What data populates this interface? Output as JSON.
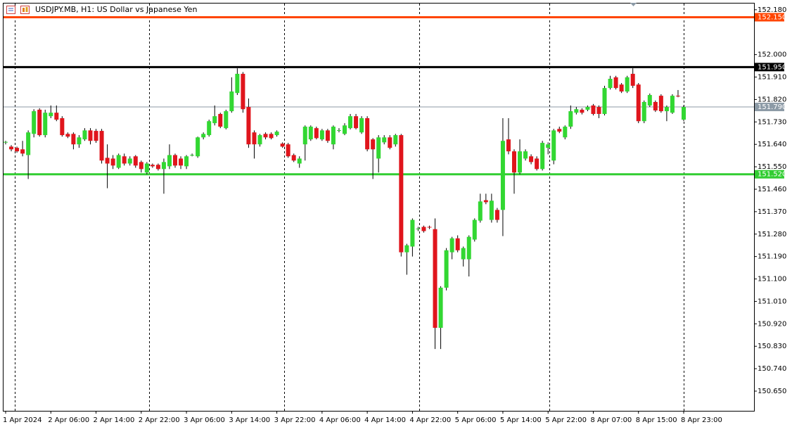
{
  "chart_data": {
    "type": "candlestick",
    "title": "USDJPY.MB, H1: US Dollar vs Japanese Yen",
    "categories": [
      "1 Apr 2024",
      null,
      null,
      null,
      null,
      null,
      null,
      null,
      "2 Apr 06:00",
      null,
      null,
      null,
      null,
      null,
      null,
      null,
      "2 Apr 14:00",
      null,
      null,
      null,
      null,
      null,
      null,
      null,
      "2 Apr 22:00",
      null,
      null,
      null,
      null,
      null,
      null,
      null,
      "3 Apr 06:00",
      null,
      null,
      null,
      null,
      null,
      null,
      null,
      "3 Apr 14:00",
      null,
      null,
      null,
      null,
      null,
      null,
      null,
      "3 Apr 22:00",
      null,
      null,
      null,
      null,
      null,
      null,
      null,
      "4 Apr 06:00",
      null,
      null,
      null,
      null,
      null,
      null,
      null,
      "4 Apr 14:00",
      null,
      null,
      null,
      null,
      null,
      null,
      null,
      "4 Apr 22:00",
      null,
      null,
      null,
      null,
      null,
      null,
      null,
      "5 Apr 06:00",
      null,
      null,
      null,
      null,
      null,
      null,
      null,
      "5 Apr 14:00",
      null,
      null,
      null,
      null,
      null,
      null,
      null,
      "5 Apr 22:00",
      null,
      null,
      null,
      null,
      null,
      null,
      null,
      "8 Apr 07:00",
      null,
      null,
      null,
      null,
      null,
      null,
      null,
      "8 Apr 15:00",
      null,
      null,
      null,
      null,
      null,
      null,
      null,
      "8 Apr 23:00"
    ],
    "open": [
      151.648,
      151.631,
      151.626,
      151.62,
      151.597,
      151.682,
      151.779,
      151.677,
      151.753,
      151.767,
      151.745,
      151.682,
      151.682,
      151.64,
      151.66,
      151.696,
      151.694,
      151.694,
      151.586,
      151.583,
      151.546,
      151.592,
      151.563,
      151.592,
      151.569,
      151.527,
      151.558,
      151.558,
      151.541,
      151.552,
      151.597,
      151.583,
      151.552,
      151.597,
      151.592,
      151.668,
      151.677,
      151.725,
      151.762,
      151.705,
      151.773,
      151.846,
      151.923,
      151.79,
      151.688,
      151.64,
      151.682,
      151.682,
      151.677,
      151.643,
      151.64,
      151.597,
      151.563,
      151.64,
      151.66,
      151.705,
      151.66,
      151.696,
      151.64,
      151.696,
      151.682,
      151.705,
      151.753,
      151.688,
      151.745,
      151.66,
      151.583,
      151.648,
      151.668,
      151.64,
      151.677,
      151.207,
      151.23,
      151.3,
      151.309,
      151.309,
      151.3,
      150.904,
      151.065,
      151.207,
      151.263,
      151.179,
      151.179,
      151.258,
      151.334,
      151.416,
      151.337,
      151.377,
      151.377,
      151.66,
      151.612,
      151.527,
      151.583,
      151.592,
      151.583,
      151.541,
      151.626,
      151.575,
      151.702,
      151.668,
      151.711,
      151.767,
      151.779,
      151.779,
      151.796,
      151.79,
      151.762,
      151.866,
      151.909,
      151.88,
      151.852,
      151.923,
      151.88,
      151.733,
      151.796,
      151.81,
      151.835,
      151.773,
      151.767,
      151.835,
      151.739
    ],
    "high": [
      151.654,
      151.637,
      151.631,
      151.654,
      151.696,
      151.781,
      151.785,
      151.779,
      151.796,
      151.796,
      151.753,
      151.688,
      151.688,
      151.677,
      151.705,
      151.705,
      151.702,
      151.702,
      151.64,
      151.597,
      151.603,
      151.603,
      151.592,
      151.597,
      151.575,
      151.569,
      151.563,
      151.563,
      151.583,
      151.64,
      151.603,
      151.592,
      151.597,
      151.603,
      151.671,
      151.688,
      151.739,
      151.796,
      151.767,
      151.779,
      151.909,
      151.945,
      151.93,
      151.824,
      151.696,
      151.682,
      151.688,
      151.688,
      151.696,
      151.648,
      151.646,
      151.603,
      151.592,
      151.716,
      151.716,
      151.711,
      151.702,
      151.702,
      151.716,
      151.705,
      151.725,
      151.762,
      151.762,
      151.753,
      151.753,
      151.665,
      151.677,
      151.677,
      151.677,
      151.682,
      151.682,
      151.241,
      151.343,
      151.309,
      151.314,
      151.314,
      151.343,
      151.071,
      151.224,
      151.269,
      151.275,
      151.23,
      151.275,
      151.343,
      151.442,
      151.442,
      151.442,
      151.385,
      151.745,
      151.745,
      151.62,
      151.66,
      151.62,
      151.6,
      151.592,
      151.654,
      151.648,
      151.702,
      151.711,
      151.716,
      151.796,
      151.79,
      151.785,
      151.796,
      151.802,
      151.796,
      151.875,
      151.915,
      151.915,
      151.886,
      151.915,
      151.945,
      151.886,
      151.816,
      151.844,
      151.816,
      151.841,
      151.796,
      151.841,
      151.858,
      151.796
    ],
    "low": [
      151.64,
      151.612,
      151.606,
      151.592,
      151.501,
      151.668,
      151.671,
      151.668,
      151.745,
      151.733,
      151.671,
      151.665,
      151.62,
      151.626,
      151.654,
      151.64,
      151.646,
      151.563,
      151.464,
      151.541,
      151.541,
      151.555,
      151.555,
      151.546,
      151.527,
      151.52,
      151.546,
      151.535,
      151.442,
      151.541,
      151.546,
      151.541,
      151.541,
      151.592,
      151.586,
      151.66,
      151.671,
      151.716,
      151.705,
      151.7,
      151.767,
      151.838,
      151.767,
      151.626,
      151.583,
      151.631,
      151.66,
      151.66,
      151.671,
      151.626,
      151.586,
      151.569,
      151.546,
      151.575,
      151.654,
      151.66,
      151.654,
      151.646,
      151.62,
      151.688,
      151.677,
      151.7,
      151.7,
      151.682,
      151.612,
      151.501,
      151.527,
      151.64,
      151.62,
      151.631,
      151.19,
      151.117,
      151.19,
      151.292,
      151.286,
      151.3,
      150.819,
      150.819,
      151.054,
      151.179,
      151.207,
      151.15,
      151.11,
      151.25,
      151.326,
      151.4,
      151.326,
      151.326,
      151.272,
      151.6,
      151.442,
      151.52,
      151.575,
      151.56,
      151.535,
      151.535,
      151.6,
      151.56,
      151.685,
      151.66,
      151.702,
      151.76,
      151.76,
      151.773,
      151.756,
      151.745,
      151.756,
      151.86,
      151.86,
      151.846,
      151.846,
      151.866,
      151.725,
      151.725,
      151.79,
      151.77,
      151.767,
      151.733,
      151.762,
      151.829,
      151.733
    ],
    "close": [
      151.65,
      151.62,
      151.612,
      151.603,
      151.688,
      151.773,
      151.677,
      151.767,
      151.767,
      151.739,
      151.677,
      151.671,
      151.64,
      151.668,
      151.696,
      151.654,
      151.654,
      151.575,
      151.563,
      151.555,
      151.597,
      151.563,
      151.583,
      151.555,
      151.541,
      151.563,
      151.552,
      151.541,
      151.569,
      151.597,
      151.555,
      151.555,
      151.592,
      151.598,
      151.668,
      151.682,
      151.733,
      151.753,
      151.711,
      151.773,
      151.852,
      151.923,
      151.781,
      151.64,
      151.64,
      151.677,
      151.668,
      151.665,
      151.691,
      151.631,
      151.592,
      151.575,
      151.583,
      151.711,
      151.711,
      151.665,
      151.696,
      151.654,
      151.711,
      151.697,
      151.716,
      151.753,
      151.705,
      151.745,
      151.62,
      151.62,
      151.668,
      151.668,
      151.626,
      151.677,
      151.207,
      151.235,
      151.337,
      151.302,
      151.292,
      151.307,
      150.904,
      151.065,
      151.215,
      151.263,
      151.215,
      151.224,
      151.269,
      151.337,
      151.411,
      151.408,
      151.414,
      151.337,
      151.654,
      151.612,
      151.527,
      151.612,
      151.612,
      151.569,
      151.541,
      151.646,
      151.64,
      151.696,
      151.691,
      151.711,
      151.773,
      151.781,
      151.767,
      151.79,
      151.762,
      151.762,
      151.866,
      151.903,
      151.866,
      151.852,
      151.909,
      151.875,
      151.733,
      151.81,
      151.838,
      151.776,
      151.773,
      151.79,
      151.835,
      151.834,
      151.79
    ],
    "up_color": "#32d732",
    "down_color": "#e0151c",
    "wick_color": "#000000",
    "ylim": [
      150.571,
      152.205
    ],
    "yticks": [
      {
        "value": 152.18,
        "label": "152.180"
      },
      {
        "value": 152.0,
        "label": "152.000"
      },
      {
        "value": 151.91,
        "label": "151.910"
      },
      {
        "value": 151.82,
        "label": "151.820"
      },
      {
        "value": 151.73,
        "label": "151.730"
      },
      {
        "value": 151.64,
        "label": "151.640"
      },
      {
        "value": 151.55,
        "label": "151.550"
      },
      {
        "value": 151.46,
        "label": "151.460"
      },
      {
        "value": 151.37,
        "label": "151.370"
      },
      {
        "value": 151.28,
        "label": "151.280"
      },
      {
        "value": 151.19,
        "label": "151.190"
      },
      {
        "value": 151.1,
        "label": "151.100"
      },
      {
        "value": 151.01,
        "label": "151.010"
      },
      {
        "value": 150.92,
        "label": "150.920"
      },
      {
        "value": 150.83,
        "label": "150.830"
      },
      {
        "value": 150.74,
        "label": "150.740"
      },
      {
        "value": 150.65,
        "label": "150.650"
      }
    ],
    "levels": [
      {
        "value": 152.15,
        "label": "152.150",
        "color": "#ff4500"
      },
      {
        "value": 151.95,
        "label": "151.950",
        "color": "#000000"
      },
      {
        "value": 151.52,
        "label": "151.520",
        "color": "#32cd32"
      }
    ],
    "last_price": {
      "value": 151.79,
      "label": "151.790",
      "color": "#8c9aa6"
    }
  }
}
